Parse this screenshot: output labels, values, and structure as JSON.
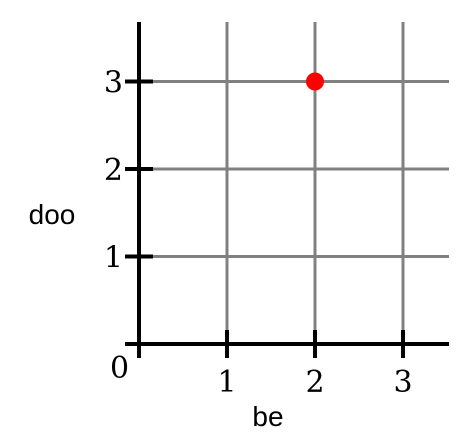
{
  "chart_data": {
    "type": "scatter",
    "xlabel": "be",
    "ylabel": "doo",
    "origin_label": "0",
    "xlim": [
      0,
      3.5
    ],
    "ylim": [
      0,
      3.6
    ],
    "x_ticks": [
      1,
      2,
      3
    ],
    "y_ticks": [
      1,
      2,
      3
    ],
    "x_tick_labels": [
      "1",
      "2",
      "3"
    ],
    "y_tick_labels": [
      "1",
      "2",
      "3"
    ],
    "grid": true,
    "points": [
      {
        "x": 2,
        "y": 3
      }
    ],
    "colors": {
      "point": "#ff0000",
      "grid": "#808080",
      "axis": "#000000"
    }
  }
}
